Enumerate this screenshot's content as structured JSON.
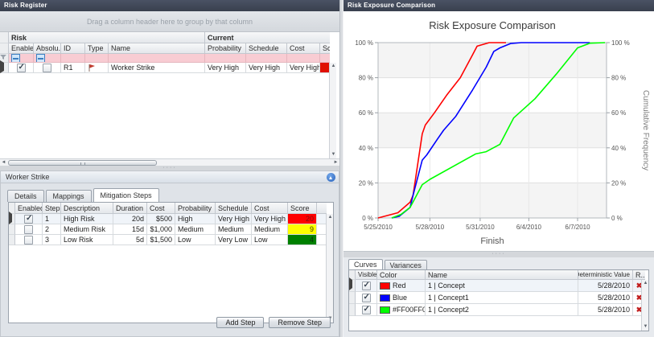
{
  "risk_register": {
    "title": "Risk Register",
    "group_hint": "Drag a column header here to group by that column",
    "bands": {
      "risk": "Risk",
      "current": "Current"
    },
    "cols": {
      "enabled": "Enabled",
      "absolute": "Absolu...",
      "id": "ID",
      "type": "Type",
      "name": "Name",
      "probability": "Probability",
      "schedule": "Schedule",
      "cost": "Cost",
      "score": "Score"
    },
    "row": {
      "enabled": true,
      "absolute": false,
      "id": "R1",
      "name": "Worker Strike",
      "probability": "Very High",
      "schedule": "Very High",
      "cost": "Very High",
      "score_color": "#e01000"
    }
  },
  "mitigation": {
    "title": "Worker Strike",
    "tabs": {
      "details": "Details",
      "mappings": "Mappings",
      "steps": "Mitigation Steps"
    },
    "cols": {
      "enabled": "Enabled",
      "step": "Step",
      "description": "Description",
      "duration": "Duration",
      "cost": "Cost",
      "probability": "Probability",
      "schedule": "Schedule",
      "cost2": "Cost",
      "score": "Score"
    },
    "rows": [
      {
        "enabled": true,
        "step": "1",
        "description": "High Risk",
        "duration": "20d",
        "cost": "$500",
        "probability": "High",
        "schedule": "Very High",
        "cost2": "Very High",
        "score": "20",
        "score_bg": "#ff0000",
        "score_fg": "#7b1010"
      },
      {
        "enabled": false,
        "step": "2",
        "description": "Medium Risk",
        "duration": "15d",
        "cost": "$1,000",
        "probability": "Medium",
        "schedule": "Medium",
        "cost2": "Medium",
        "score": "9",
        "score_bg": "#ffff00",
        "score_fg": "#3c3c00"
      },
      {
        "enabled": false,
        "step": "3",
        "description": "Low Risk",
        "duration": "5d",
        "cost": "$1,500",
        "probability": "Low",
        "schedule": "Very Low",
        "cost2": "Low",
        "score": "4",
        "score_bg": "#008000",
        "score_fg": "#07330c"
      }
    ],
    "add_button": "Add Step",
    "remove_button": "Remove Step"
  },
  "comparison": {
    "title": "Risk Exposure Comparison",
    "tabs": {
      "curves": "Curves",
      "variances": "Variances"
    },
    "cols": {
      "visible": "Visible",
      "color": "Color",
      "name": "Name",
      "deterministic": "Deterministic Value",
      "remove": "R..."
    },
    "rows": [
      {
        "visible": true,
        "swatch": "#ff0000",
        "color": "Red",
        "name": "1 | Concept",
        "deterministic": "5/28/2010"
      },
      {
        "visible": true,
        "swatch": "#0000ff",
        "color": "Blue",
        "name": "1 | Concept1",
        "deterministic": "5/28/2010"
      },
      {
        "visible": true,
        "swatch": "#00ff00",
        "color": "#FF00FF00",
        "name": "1 | Concept2",
        "deterministic": "5/28/2010"
      }
    ]
  },
  "chart_data": {
    "type": "line",
    "title": "Risk Exposure Comparison",
    "xlabel": "Finish",
    "ylabel_right": "Cumulative Frequency",
    "y_unit": "%",
    "ylim": [
      0,
      100
    ],
    "y_ticks": [
      0,
      20,
      40,
      60,
      80,
      100
    ],
    "x_axis_days_domain": [
      0,
      15
    ],
    "x_ticks": [
      {
        "t": 0,
        "label": "5/25/2010"
      },
      {
        "t": 3.4,
        "label": "5/28/2010"
      },
      {
        "t": 6.7,
        "label": "5/31/2010"
      },
      {
        "t": 9.9,
        "label": "6/4/2010"
      },
      {
        "t": 13.1,
        "label": "6/7/2010"
      }
    ],
    "shaded_bands_pct": [
      [
        0,
        20
      ],
      [
        40,
        60
      ],
      [
        80,
        100
      ]
    ],
    "series": [
      {
        "name": "1 | Concept",
        "color": "#ff0000",
        "points": [
          [
            0,
            0
          ],
          [
            1.3,
            3
          ],
          [
            2.1,
            9
          ],
          [
            2.3,
            13
          ],
          [
            2.9,
            48
          ],
          [
            3.1,
            53
          ],
          [
            3.7,
            60
          ],
          [
            4.5,
            70
          ],
          [
            5.4,
            80
          ],
          [
            6.2,
            93
          ],
          [
            6.5,
            98
          ],
          [
            7.3,
            100
          ],
          [
            8.4,
            100
          ]
        ]
      },
      {
        "name": "1 | Concept1",
        "color": "#0000ff",
        "points": [
          [
            0.9,
            0
          ],
          [
            1.4,
            1
          ],
          [
            2.1,
            6
          ],
          [
            2.3,
            13
          ],
          [
            2.9,
            33
          ],
          [
            3.2,
            36
          ],
          [
            3.9,
            45
          ],
          [
            4.3,
            50
          ],
          [
            5.1,
            58
          ],
          [
            6.2,
            73
          ],
          [
            7.1,
            86
          ],
          [
            7.6,
            95
          ],
          [
            8.0,
            97
          ],
          [
            8.7,
            99.5
          ],
          [
            9.4,
            100
          ],
          [
            13.9,
            100
          ]
        ]
      },
      {
        "name": "1 | Concept2",
        "color": "#00ff00",
        "points": [
          [
            0.9,
            0
          ],
          [
            1.5,
            2
          ],
          [
            2.1,
            6
          ],
          [
            2.9,
            19
          ],
          [
            3.4,
            22
          ],
          [
            6.4,
            36.5
          ],
          [
            7.1,
            37.8
          ],
          [
            8.0,
            42
          ],
          [
            8.9,
            57
          ],
          [
            10.3,
            68
          ],
          [
            11.7,
            82
          ],
          [
            13.1,
            97
          ],
          [
            13.9,
            99.7
          ],
          [
            14.9,
            100
          ]
        ]
      }
    ]
  }
}
